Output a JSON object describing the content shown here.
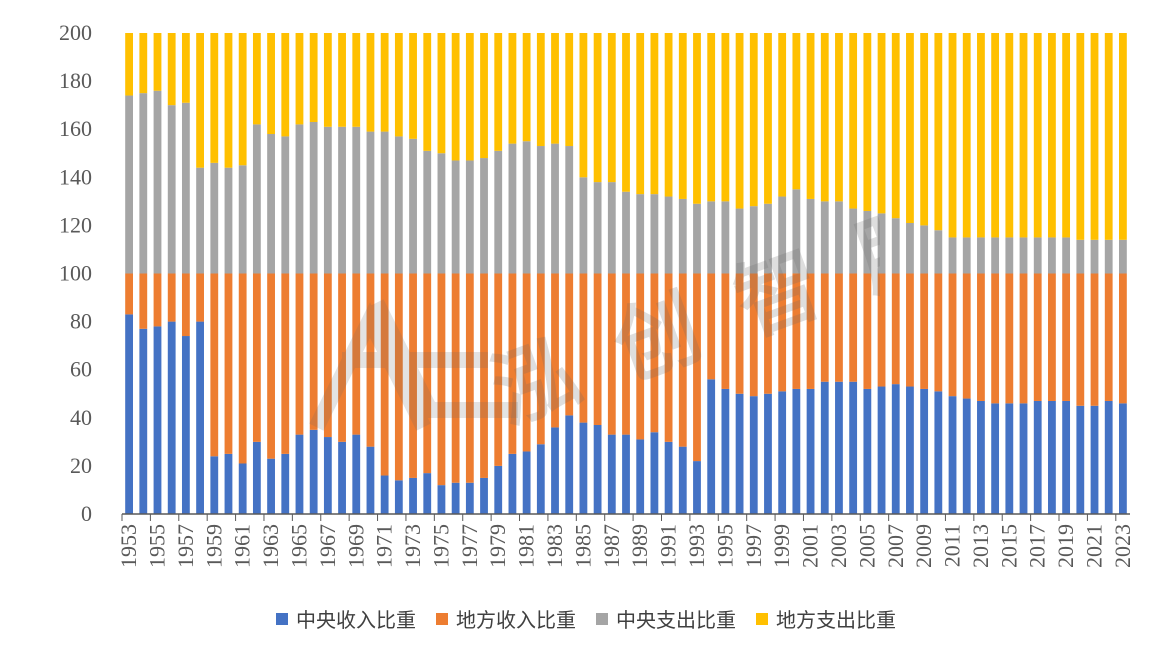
{
  "chart_data": {
    "type": "bar",
    "stacked": true,
    "x": [
      1953,
      1954,
      1955,
      1956,
      1957,
      1958,
      1959,
      1960,
      1961,
      1962,
      1963,
      1964,
      1965,
      1966,
      1967,
      1968,
      1969,
      1970,
      1971,
      1972,
      1973,
      1974,
      1975,
      1976,
      1977,
      1978,
      1979,
      1980,
      1981,
      1982,
      1983,
      1984,
      1985,
      1986,
      1987,
      1988,
      1989,
      1990,
      1991,
      1992,
      1993,
      1994,
      1995,
      1996,
      1997,
      1998,
      1999,
      2000,
      2001,
      2002,
      2003,
      2004,
      2005,
      2006,
      2007,
      2008,
      2009,
      2010,
      2011,
      2012,
      2013,
      2014,
      2015,
      2016,
      2017,
      2018,
      2019,
      2020,
      2021,
      2022,
      2023
    ],
    "xtick_labels": [
      "1953",
      "1955",
      "1957",
      "1959",
      "1961",
      "1963",
      "1965",
      "1967",
      "1969",
      "1971",
      "1973",
      "1975",
      "1977",
      "1979",
      "1981",
      "1983",
      "1985",
      "1987",
      "1989",
      "1991",
      "1993",
      "1995",
      "1997",
      "1999",
      "2001",
      "2003",
      "2005",
      "2007",
      "2009",
      "2011",
      "2013",
      "2015",
      "2017",
      "2019",
      "2021",
      "2023"
    ],
    "ylim": [
      0,
      200
    ],
    "yticks": [
      0,
      20,
      40,
      60,
      80,
      100,
      120,
      140,
      160,
      180,
      200
    ],
    "legend_position": "bottom",
    "series": [
      {
        "name": "中央收入比重",
        "color": "#4472C4",
        "values": [
          83,
          77,
          78,
          80,
          74,
          80,
          24,
          25,
          21,
          30,
          23,
          25,
          33,
          35,
          32,
          30,
          33,
          28,
          16,
          14,
          15,
          17,
          12,
          13,
          13,
          15,
          20,
          25,
          26,
          29,
          36,
          41,
          38,
          37,
          33,
          33,
          31,
          34,
          30,
          28,
          22,
          56,
          52,
          50,
          49,
          50,
          51,
          52,
          52,
          55,
          55,
          55,
          52,
          53,
          54,
          53,
          52,
          51,
          49,
          48,
          47,
          46,
          46,
          46,
          47,
          47,
          47,
          45,
          45,
          47,
          46
        ]
      },
      {
        "name": "地方收入比重",
        "color": "#ED7D31",
        "values": [
          17,
          23,
          22,
          20,
          26,
          20,
          76,
          75,
          79,
          70,
          77,
          75,
          67,
          65,
          68,
          70,
          67,
          72,
          84,
          86,
          85,
          83,
          88,
          87,
          87,
          85,
          80,
          75,
          74,
          71,
          64,
          59,
          62,
          63,
          67,
          67,
          69,
          66,
          70,
          72,
          78,
          44,
          48,
          50,
          51,
          50,
          49,
          48,
          48,
          45,
          45,
          45,
          48,
          47,
          46,
          47,
          48,
          49,
          51,
          52,
          53,
          54,
          54,
          54,
          53,
          53,
          53,
          55,
          55,
          53,
          54
        ]
      },
      {
        "name": "中央支出比重",
        "color": "#A5A5A5",
        "values": [
          74,
          75,
          76,
          70,
          71,
          44,
          46,
          44,
          45,
          62,
          58,
          57,
          62,
          63,
          61,
          61,
          61,
          59,
          59,
          57,
          56,
          51,
          50,
          47,
          47,
          48,
          51,
          54,
          55,
          53,
          54,
          53,
          40,
          38,
          38,
          34,
          33,
          33,
          32,
          31,
          29,
          30,
          30,
          27,
          28,
          29,
          32,
          35,
          31,
          30,
          30,
          27,
          26,
          25,
          23,
          21,
          20,
          18,
          15,
          15,
          15,
          15,
          15,
          15,
          15,
          15,
          15,
          14,
          14,
          14,
          14
        ]
      },
      {
        "name": "地方支出比重",
        "color": "#FFC000",
        "values": [
          26,
          25,
          24,
          30,
          29,
          56,
          54,
          56,
          55,
          38,
          42,
          43,
          38,
          37,
          39,
          39,
          39,
          41,
          41,
          43,
          44,
          49,
          50,
          53,
          53,
          52,
          49,
          46,
          45,
          47,
          46,
          47,
          60,
          62,
          62,
          66,
          67,
          67,
          68,
          69,
          71,
          70,
          70,
          73,
          72,
          71,
          68,
          65,
          69,
          70,
          70,
          73,
          74,
          75,
          77,
          79,
          80,
          82,
          85,
          85,
          85,
          85,
          85,
          85,
          85,
          85,
          85,
          86,
          86,
          86,
          86
        ]
      }
    ]
  },
  "watermark": {
    "text": "泓 创 智 胜"
  }
}
